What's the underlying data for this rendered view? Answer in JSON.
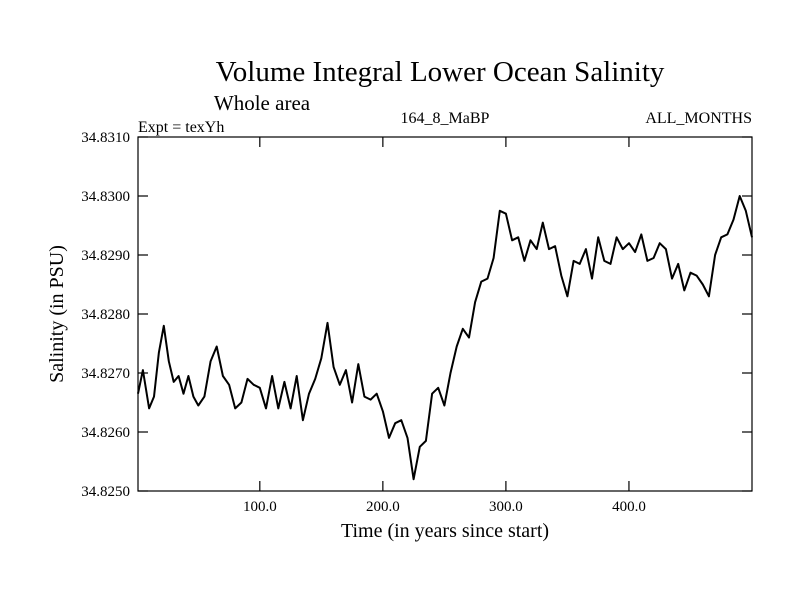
{
  "chart_data": {
    "type": "line",
    "title": "Volume Integral Lower Ocean Salinity",
    "subtitle": "Whole area",
    "annotations": {
      "left": "Expt = texYh",
      "center": "164_8_MaBP",
      "right": "ALL_MONTHS"
    },
    "xlabel": "Time (in years since start)",
    "ylabel": "Salinity (in PSU)",
    "xlim": [
      1,
      500
    ],
    "ylim": [
      34.825,
      34.831
    ],
    "x_ticks": [
      100,
      200,
      300,
      400
    ],
    "x_tick_labels": [
      "100.0",
      "200.0",
      "300.0",
      "400.0"
    ],
    "y_ticks": [
      34.825,
      34.826,
      34.827,
      34.828,
      34.829,
      34.83,
      34.831
    ],
    "y_tick_labels": [
      "34.8250",
      "34.8260",
      "34.8270",
      "34.8280",
      "34.8290",
      "34.8300",
      "34.8310"
    ],
    "grid": false,
    "series": [
      {
        "color": "#000000",
        "x": [
          1,
          5,
          10,
          14,
          18,
          22,
          26,
          30,
          34,
          38,
          42,
          46,
          50,
          55,
          60,
          65,
          70,
          75,
          80,
          85,
          90,
          95,
          100,
          105,
          110,
          115,
          120,
          125,
          130,
          135,
          140,
          145,
          150,
          155,
          160,
          165,
          170,
          175,
          180,
          185,
          190,
          195,
          200,
          205,
          210,
          215,
          220,
          225,
          230,
          235,
          240,
          245,
          250,
          255,
          260,
          265,
          270,
          275,
          280,
          285,
          290,
          295,
          300,
          305,
          310,
          315,
          320,
          325,
          330,
          335,
          340,
          345,
          350,
          355,
          360,
          365,
          370,
          375,
          380,
          385,
          390,
          395,
          400,
          405,
          410,
          415,
          420,
          425,
          430,
          435,
          440,
          445,
          450,
          455,
          460,
          465,
          470,
          475,
          480,
          485,
          490,
          495,
          500
        ],
        "values": [
          34.82665,
          34.82705,
          34.8264,
          34.8266,
          34.82735,
          34.8278,
          34.8272,
          34.82685,
          34.82695,
          34.82665,
          34.82695,
          34.8266,
          34.82645,
          34.8266,
          34.8272,
          34.82745,
          34.82695,
          34.8268,
          34.8264,
          34.8265,
          34.8269,
          34.8268,
          34.82675,
          34.8264,
          34.82695,
          34.8264,
          34.82685,
          34.8264,
          34.82695,
          34.8262,
          34.82665,
          34.8269,
          34.82725,
          34.82785,
          34.8271,
          34.8268,
          34.82705,
          34.8265,
          34.82715,
          34.8266,
          34.82655,
          34.82665,
          34.82635,
          34.8259,
          34.82615,
          34.8262,
          34.8259,
          34.8252,
          34.82575,
          34.82585,
          34.82665,
          34.82675,
          34.82645,
          34.827,
          34.82745,
          34.82775,
          34.8276,
          34.8282,
          34.82855,
          34.8286,
          34.82895,
          34.82975,
          34.8297,
          34.82925,
          34.8293,
          34.8289,
          34.82925,
          34.8291,
          34.82955,
          34.8291,
          34.82915,
          34.82865,
          34.8283,
          34.8289,
          34.82885,
          34.8291,
          34.8286,
          34.8293,
          34.8289,
          34.82885,
          34.8293,
          34.8291,
          34.8292,
          34.82905,
          34.82935,
          34.8289,
          34.82895,
          34.8292,
          34.8291,
          34.8286,
          34.82885,
          34.8284,
          34.8287,
          34.82865,
          34.8285,
          34.8283,
          34.829,
          34.8293,
          34.82935,
          34.8296,
          34.83,
          34.82975,
          34.8293
        ]
      }
    ]
  }
}
